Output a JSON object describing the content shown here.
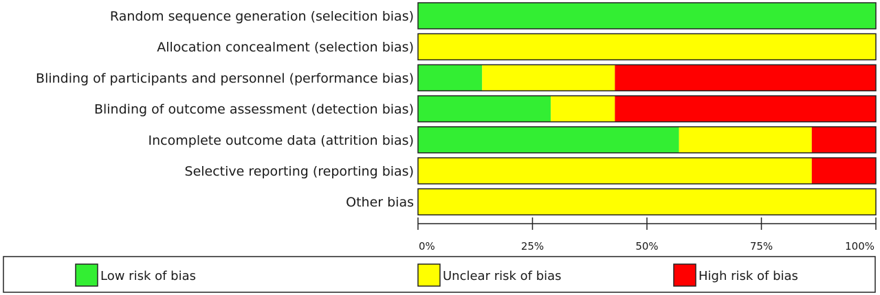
{
  "chart_data": {
    "type": "bar",
    "orientation": "horizontal",
    "stacked": true,
    "categories": [
      "Random sequence generation  (selecition bias)",
      "Allocation concealment (selection bias)",
      "Blinding of participants and personnel (performance bias)",
      "Blinding of outcome assessment (detection bias)",
      "Incomplete outcome data (attrition bias)",
      "Selective reporting (reporting bias)",
      "Other bias"
    ],
    "series": [
      {
        "name": "Low risk of bias",
        "color": "#33ee33",
        "values": [
          100,
          0,
          14,
          29,
          57,
          0,
          0
        ]
      },
      {
        "name": "Unclear risk of bias",
        "color": "#ffff00",
        "values": [
          0,
          100,
          29,
          14,
          29,
          86,
          100
        ]
      },
      {
        "name": "High risk of bias",
        "color": "#ff0000",
        "values": [
          0,
          0,
          57,
          57,
          14,
          14,
          0
        ]
      }
    ],
    "xlim": [
      0,
      100
    ],
    "xticks": [
      "0%",
      "25%",
      "50%",
      "75%",
      "100%"
    ],
    "legend_position": "bottom",
    "grid": false
  }
}
